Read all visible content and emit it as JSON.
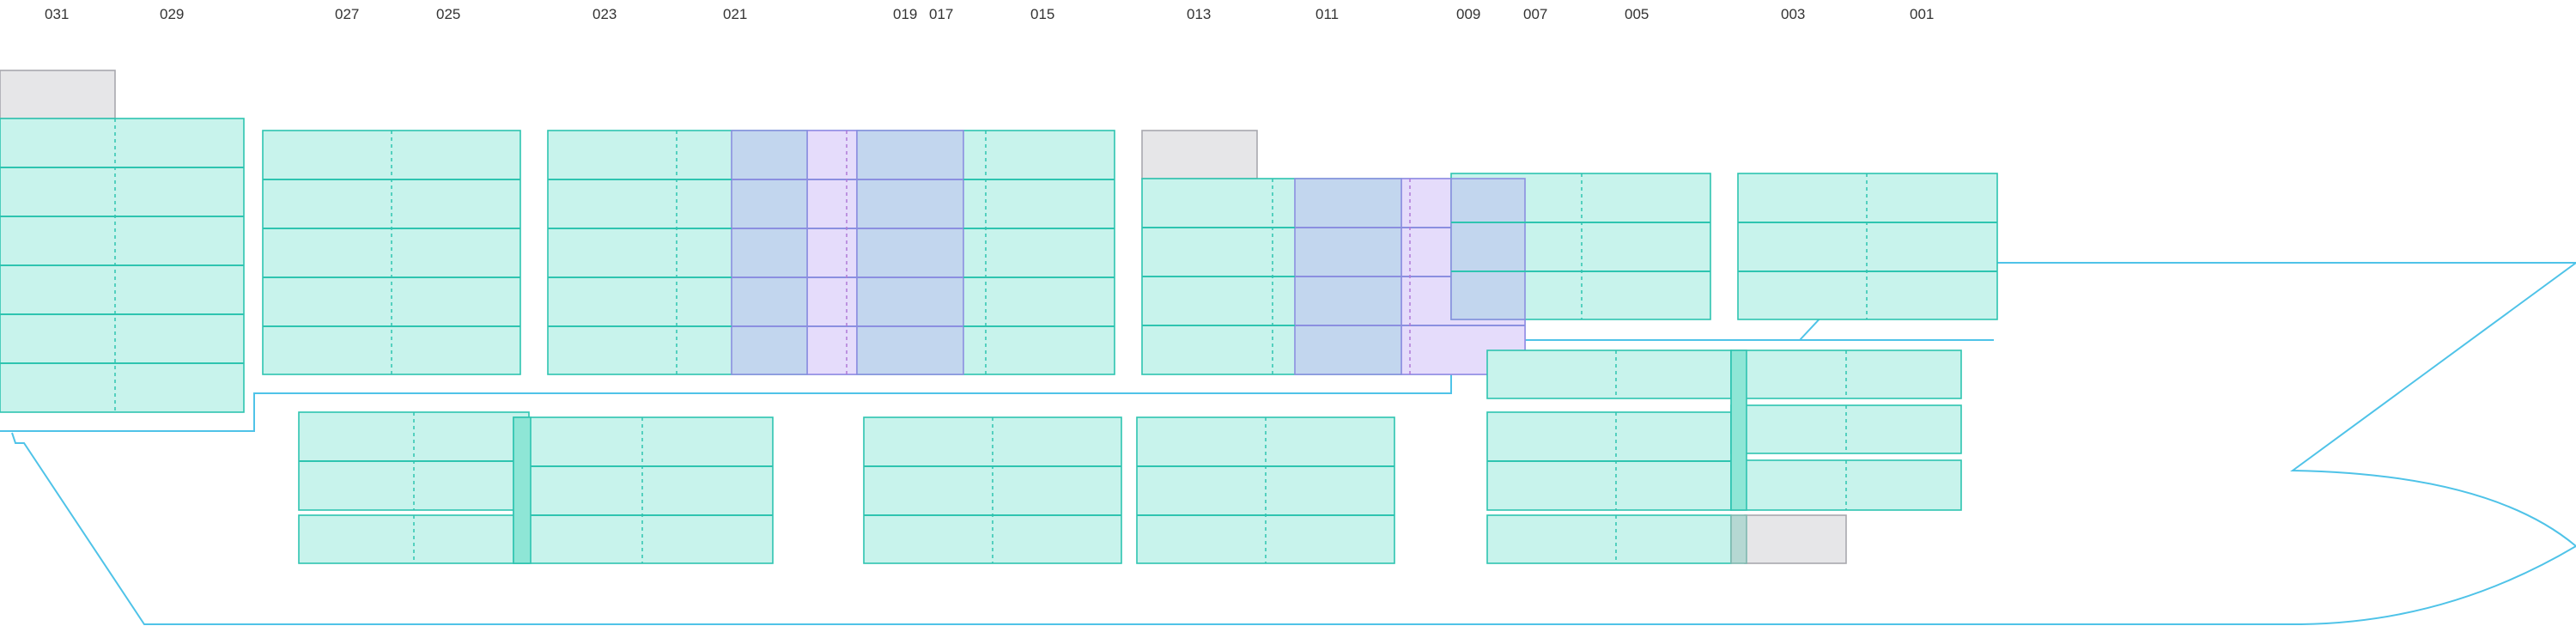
{
  "bay_labels": [
    "031",
    "029",
    "027",
    "025",
    "023",
    "021",
    "019",
    "017",
    "015",
    "013",
    "011",
    "009",
    "007",
    "005",
    "003",
    "001"
  ],
  "colors": {
    "container": "#c8f3ec",
    "container_stroke": "#2ec4b0",
    "empty_slot": "#e6e6e8",
    "highlight_lavender": "#e5dcfb",
    "highlight_blue": "#c2d6ee",
    "hull": "#4fc3e8"
  }
}
